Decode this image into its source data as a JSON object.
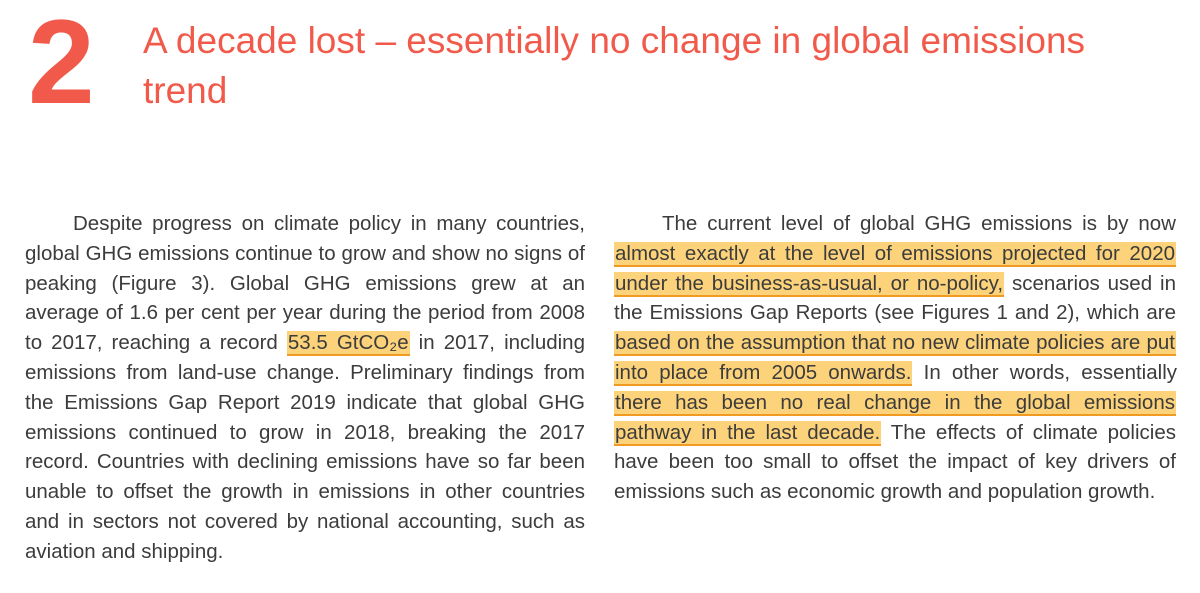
{
  "section": {
    "number": "2",
    "title": "A decade lost – essentially no change in global emissions trend"
  },
  "left_column": {
    "p1": "Despite progress on climate policy in many countries, global GHG emissions continue to grow and show no signs of peaking (Figure 3). Global GHG emissions grew at an average of 1.6 per cent per year during the period from 2008 to 2017, reaching a record ",
    "highlight1": "53.5 GtCO₂e",
    "p2": " in 2017, including emissions from land-use change. Preliminary findings from the Emissions Gap Report 2019 indicate that global GHG emissions continued to grow in 2018, breaking the 2017 record. Countries with declining emissions have so far been unable to offset the growth in emissions in other countries and in sectors not covered by national accounting, such as aviation and shipping."
  },
  "right_column": {
    "p1": "The current level of global GHG emissions is by now ",
    "highlight1": "almost exactly at the level of emissions projected for 2020 under the business-as-usual, or no-policy,",
    "p2": " scenarios used in the Emissions Gap Reports (see Figures 1 and 2), which are ",
    "highlight2": "based on the assumption that no new climate policies are put into place from 2005 onwards.",
    "p3": " In other words, essentially ",
    "highlight3": "there has been no real change in the global emissions pathway in the last decade.",
    "p4": " The effects of climate policies have been too small to offset the impact of key drivers of emissions such as economic growth and population growth."
  },
  "colors": {
    "title_accent": "#f15a4a",
    "highlight_fill": "#fcd37a",
    "highlight_underline": "#f19a22",
    "body_text": "#3c3c3c"
  }
}
